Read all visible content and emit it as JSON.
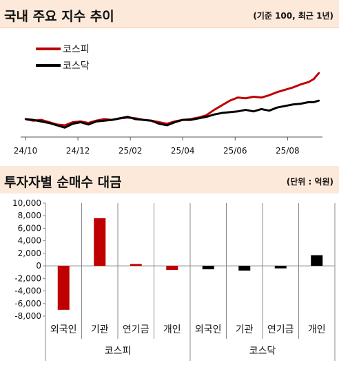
{
  "section1": {
    "title": "국내 주요 지수 추이",
    "note": "(기준 100, 최근 1년)"
  },
  "section2": {
    "title": "투자자별 순매수 대금",
    "note": "(단위 : 억원)"
  },
  "chart_data": [
    {
      "type": "line",
      "title": "국내 주요 지수 추이",
      "legend_position": "top-left",
      "grid": false,
      "x_ticks": [
        "24/10",
        "24/12",
        "25/02",
        "25/04",
        "25/06",
        "25/08"
      ],
      "x_tick_positions": [
        0,
        2,
        4,
        6,
        8,
        10
      ],
      "x_range": [
        0,
        11.2
      ],
      "y_range": [
        75,
        200
      ],
      "series": [
        {
          "name": "코스피",
          "color": "#c00000",
          "x": [
            0,
            0.3,
            0.6,
            0.9,
            1.2,
            1.5,
            1.8,
            2.1,
            2.4,
            2.7,
            3.0,
            3.3,
            3.6,
            3.9,
            4.2,
            4.5,
            4.8,
            5.1,
            5.4,
            5.7,
            6.0,
            6.3,
            6.6,
            6.9,
            7.2,
            7.5,
            7.8,
            8.1,
            8.4,
            8.7,
            9.0,
            9.3,
            9.6,
            9.9,
            10.2,
            10.5,
            10.8,
            11.0,
            11.2
          ],
          "y": [
            100,
            98,
            99,
            96,
            93,
            92,
            96,
            97,
            95,
            98,
            100,
            99,
            101,
            102,
            101,
            99,
            98,
            96,
            94,
            97,
            99,
            100,
            102,
            105,
            112,
            118,
            124,
            128,
            127,
            129,
            128,
            131,
            135,
            138,
            141,
            145,
            148,
            152,
            160
          ]
        },
        {
          "name": "코스닥",
          "color": "#000000",
          "x": [
            0,
            0.3,
            0.6,
            0.9,
            1.2,
            1.5,
            1.8,
            2.1,
            2.4,
            2.7,
            3.0,
            3.3,
            3.6,
            3.9,
            4.2,
            4.5,
            4.8,
            5.1,
            5.4,
            5.7,
            6.0,
            6.3,
            6.6,
            6.9,
            7.2,
            7.5,
            7.8,
            8.1,
            8.4,
            8.7,
            9.0,
            9.3,
            9.6,
            9.9,
            10.2,
            10.5,
            10.8,
            11.0,
            11.2
          ],
          "y": [
            100,
            99,
            97,
            95,
            92,
            89,
            94,
            96,
            93,
            97,
            98,
            99,
            101,
            103,
            100,
            99,
            98,
            94,
            92,
            96,
            99,
            99,
            101,
            103,
            106,
            108,
            109,
            110,
            112,
            110,
            113,
            111,
            115,
            117,
            119,
            120,
            122,
            122,
            124
          ]
        }
      ]
    },
    {
      "type": "bar",
      "title": "투자자별 순매수 대금",
      "grid": false,
      "ylim": [
        -8000,
        10000
      ],
      "y_ticks": [
        10000,
        8000,
        6000,
        4000,
        2000,
        0,
        -2000,
        -4000,
        -6000,
        -8000
      ],
      "y_tick_labels": [
        "10,000",
        "8,000",
        "6,000",
        "4,000",
        "2,000",
        "0",
        "-2,000",
        "-4,000",
        "-6,000",
        "-8,000"
      ],
      "groups": [
        "코스피",
        "코스닥"
      ],
      "categories": [
        "외국인",
        "기관",
        "연기금",
        "개인",
        "외국인",
        "기관",
        "연기금",
        "개인"
      ],
      "values": [
        -7000,
        7600,
        300,
        -650,
        -550,
        -750,
        -400,
        1700
      ],
      "colors": [
        "#c00000",
        "#c00000",
        "#c00000",
        "#c00000",
        "#000000",
        "#000000",
        "#000000",
        "#000000"
      ]
    }
  ]
}
